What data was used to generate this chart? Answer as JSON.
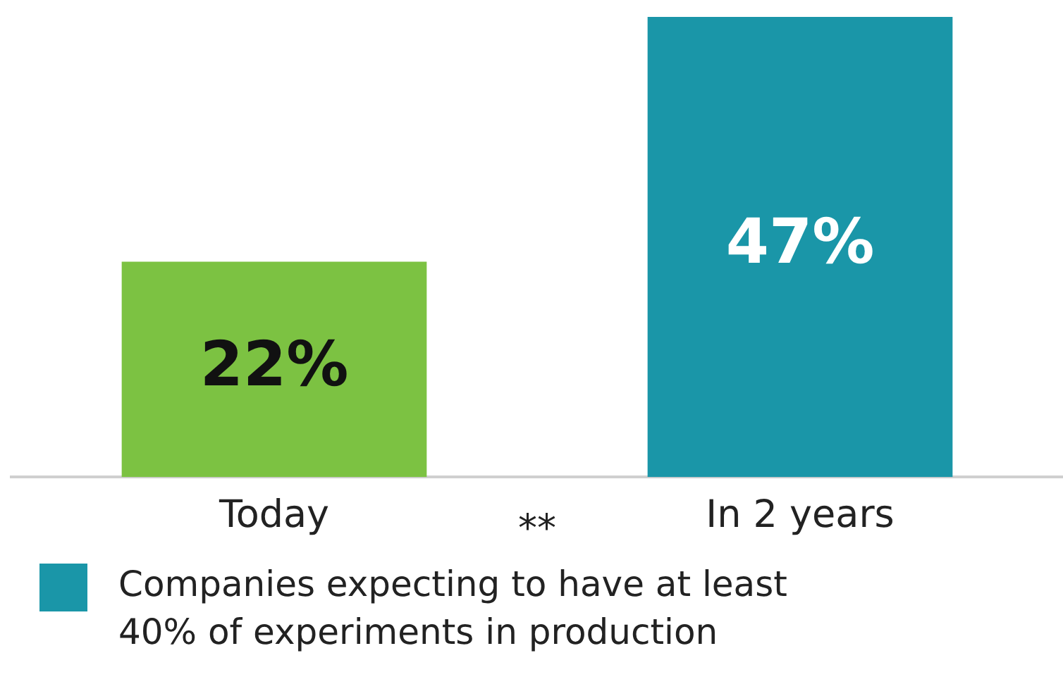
{
  "chart_data": {
    "type": "bar",
    "categories": [
      "Today",
      "In 2 years"
    ],
    "series": [
      {
        "name": "Companies expecting to have at least 40% of experiments in production",
        "color": "#1a96a8",
        "colors": [
          "#7cc242",
          "#1a96a8"
        ],
        "values": [
          22,
          47
        ],
        "value_labels": [
          "22%",
          "47%"
        ]
      }
    ],
    "ylim": [
      0,
      47
    ],
    "legend": "bottom left",
    "annotations": [
      "**"
    ]
  }
}
